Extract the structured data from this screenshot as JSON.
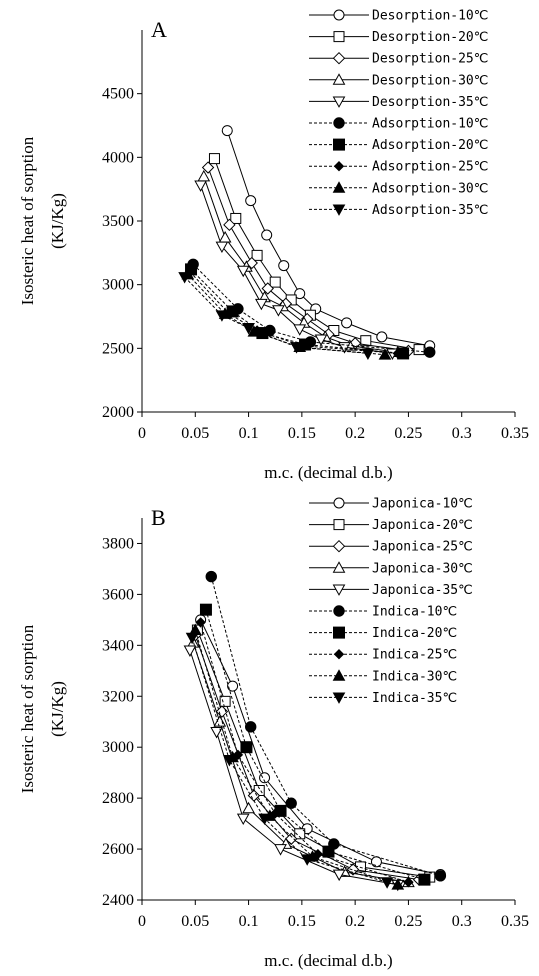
{
  "chart_data": [
    {
      "type": "line",
      "panel_label": "A",
      "ylabel_line1": "Isosteric heat of sorption",
      "ylabel_line2": "(KJ/Kg)",
      "xlabel": "m.c. (decimal d.b.)",
      "xlim": [
        0,
        0.35
      ],
      "ylim": [
        2000,
        5000
      ],
      "xticks": [
        "0",
        "0.05",
        "0.1",
        "0.15",
        "0.2",
        "0.25",
        "0.3",
        "0.35"
      ],
      "yticks": [
        "2000",
        "2500",
        "3000",
        "3500",
        "4000",
        "4500"
      ],
      "xtick_values": [
        0,
        0.05,
        0.1,
        0.15,
        0.2,
        0.25,
        0.3,
        0.35
      ],
      "ytick_values": [
        2000,
        2500,
        3000,
        3500,
        4000,
        4500
      ],
      "legend_position": "top-right",
      "series": [
        {
          "name": "Desorption-10℃",
          "marker": "circle",
          "filled": false,
          "dashed": false,
          "x": [
            0.08,
            0.102,
            0.117,
            0.133,
            0.148,
            0.163,
            0.192,
            0.225,
            0.27
          ],
          "y": [
            4210,
            3660,
            3390,
            3150,
            2930,
            2810,
            2700,
            2590,
            2520
          ]
        },
        {
          "name": "Desorption-20℃",
          "marker": "square",
          "filled": false,
          "dashed": false,
          "x": [
            0.068,
            0.088,
            0.108,
            0.125,
            0.14,
            0.158,
            0.18,
            0.21,
            0.26
          ],
          "y": [
            3990,
            3520,
            3230,
            3020,
            2880,
            2760,
            2640,
            2560,
            2490
          ]
        },
        {
          "name": "Desorption-25℃",
          "marker": "diamond",
          "filled": false,
          "dashed": false,
          "x": [
            0.062,
            0.082,
            0.103,
            0.118,
            0.135,
            0.155,
            0.175,
            0.2,
            0.25
          ],
          "y": [
            3920,
            3470,
            3170,
            2970,
            2850,
            2730,
            2610,
            2540,
            2480
          ]
        },
        {
          "name": "Desorption-30℃",
          "marker": "triangle",
          "filled": false,
          "dashed": false,
          "x": [
            0.058,
            0.078,
            0.098,
            0.115,
            0.132,
            0.152,
            0.172,
            0.195,
            0.24
          ],
          "y": [
            3850,
            3370,
            3140,
            2900,
            2830,
            2700,
            2590,
            2520,
            2470
          ]
        },
        {
          "name": "Desorption-35℃",
          "marker": "triangle-down",
          "filled": false,
          "dashed": false,
          "x": [
            0.055,
            0.075,
            0.095,
            0.112,
            0.128,
            0.148,
            0.168,
            0.19,
            0.235
          ],
          "y": [
            3780,
            3300,
            3110,
            2850,
            2800,
            2650,
            2570,
            2510,
            2460
          ]
        },
        {
          "name": "Adsorption-10℃",
          "marker": "circle",
          "filled": true,
          "dashed": true,
          "x": [
            0.048,
            0.09,
            0.12,
            0.158,
            0.27
          ],
          "y": [
            3160,
            2810,
            2640,
            2550,
            2470
          ]
        },
        {
          "name": "Adsorption-20℃",
          "marker": "square",
          "filled": true,
          "dashed": true,
          "x": [
            0.046,
            0.085,
            0.113,
            0.153,
            0.245
          ],
          "y": [
            3120,
            2790,
            2620,
            2530,
            2460
          ]
        },
        {
          "name": "Adsorption-25℃",
          "marker": "diamond",
          "filled": true,
          "dashed": true,
          "x": [
            0.045,
            0.082,
            0.108,
            0.15,
            0.24
          ],
          "y": [
            3100,
            2770,
            2640,
            2520,
            2460
          ]
        },
        {
          "name": "Adsorption-30℃",
          "marker": "triangle",
          "filled": true,
          "dashed": true,
          "x": [
            0.043,
            0.078,
            0.105,
            0.148,
            0.228
          ],
          "y": [
            3080,
            2770,
            2630,
            2510,
            2450
          ]
        },
        {
          "name": "Adsorption-35℃",
          "marker": "triangle-down",
          "filled": true,
          "dashed": true,
          "x": [
            0.04,
            0.075,
            0.1,
            0.145,
            0.212
          ],
          "y": [
            3060,
            2760,
            2660,
            2510,
            2460
          ]
        }
      ]
    },
    {
      "type": "line",
      "panel_label": "B",
      "ylabel_line1": "Isosteric heat of sorption",
      "ylabel_line2": "(KJ/Kg)",
      "xlabel": "m.c. (decimal d.b.)",
      "xlim": [
        0,
        0.35
      ],
      "ylim": [
        2400,
        3900
      ],
      "xticks": [
        "0",
        "0.05",
        "0.1",
        "0.15",
        "0.2",
        "0.25",
        "0.3",
        "0.35"
      ],
      "yticks": [
        "2400",
        "2600",
        "2800",
        "3000",
        "3200",
        "3400",
        "3600",
        "3800"
      ],
      "xtick_values": [
        0,
        0.05,
        0.1,
        0.15,
        0.2,
        0.25,
        0.3,
        0.35
      ],
      "ytick_values": [
        2400,
        2600,
        2800,
        3000,
        3200,
        3400,
        3600,
        3800
      ],
      "legend_position": "top-right",
      "series": [
        {
          "name": "Japonica-10℃",
          "marker": "circle",
          "filled": false,
          "dashed": false,
          "x": [
            0.055,
            0.085,
            0.115,
            0.155,
            0.22,
            0.28
          ],
          "y": [
            3500,
            3240,
            2880,
            2680,
            2550,
            2500
          ]
        },
        {
          "name": "Japonica-20℃",
          "marker": "square",
          "filled": false,
          "dashed": false,
          "x": [
            0.052,
            0.078,
            0.11,
            0.148,
            0.205,
            0.27
          ],
          "y": [
            3460,
            3180,
            2830,
            2660,
            2530,
            2490
          ]
        },
        {
          "name": "Japonica-25℃",
          "marker": "diamond",
          "filled": false,
          "dashed": false,
          "x": [
            0.05,
            0.075,
            0.105,
            0.14,
            0.198,
            0.26
          ],
          "y": [
            3440,
            3140,
            2810,
            2640,
            2520,
            2480
          ]
        },
        {
          "name": "Japonica-30℃",
          "marker": "triangle",
          "filled": false,
          "dashed": false,
          "x": [
            0.048,
            0.073,
            0.1,
            0.135,
            0.19,
            0.25
          ],
          "y": [
            3410,
            3100,
            2760,
            2620,
            2510,
            2470
          ]
        },
        {
          "name": "Japonica-35℃",
          "marker": "triangle-down",
          "filled": false,
          "dashed": false,
          "x": [
            0.045,
            0.07,
            0.095,
            0.13,
            0.185,
            0.24
          ],
          "y": [
            3380,
            3060,
            2720,
            2600,
            2500,
            2460
          ]
        },
        {
          "name": "Indica-10℃",
          "marker": "circle",
          "filled": true,
          "dashed": true,
          "x": [
            0.065,
            0.102,
            0.14,
            0.18,
            0.28
          ],
          "y": [
            3670,
            3080,
            2780,
            2620,
            2495
          ]
        },
        {
          "name": "Indica-20℃",
          "marker": "square",
          "filled": true,
          "dashed": true,
          "x": [
            0.06,
            0.098,
            0.13,
            0.175,
            0.265
          ],
          "y": [
            3540,
            3000,
            2750,
            2590,
            2480
          ]
        },
        {
          "name": "Indica-25℃",
          "marker": "diamond",
          "filled": true,
          "dashed": true,
          "x": [
            0.055,
            0.09,
            0.125,
            0.165,
            0.25
          ],
          "y": [
            3490,
            2970,
            2740,
            2580,
            2470
          ]
        },
        {
          "name": "Indica-30℃",
          "marker": "triangle",
          "filled": true,
          "dashed": true,
          "x": [
            0.05,
            0.085,
            0.12,
            0.16,
            0.24
          ],
          "y": [
            3460,
            2960,
            2730,
            2570,
            2460
          ]
        },
        {
          "name": "Indica-35℃",
          "marker": "triangle-down",
          "filled": true,
          "dashed": true,
          "x": [
            0.047,
            0.082,
            0.115,
            0.155,
            0.23
          ],
          "y": [
            3430,
            2950,
            2720,
            2560,
            2470
          ]
        }
      ]
    }
  ]
}
